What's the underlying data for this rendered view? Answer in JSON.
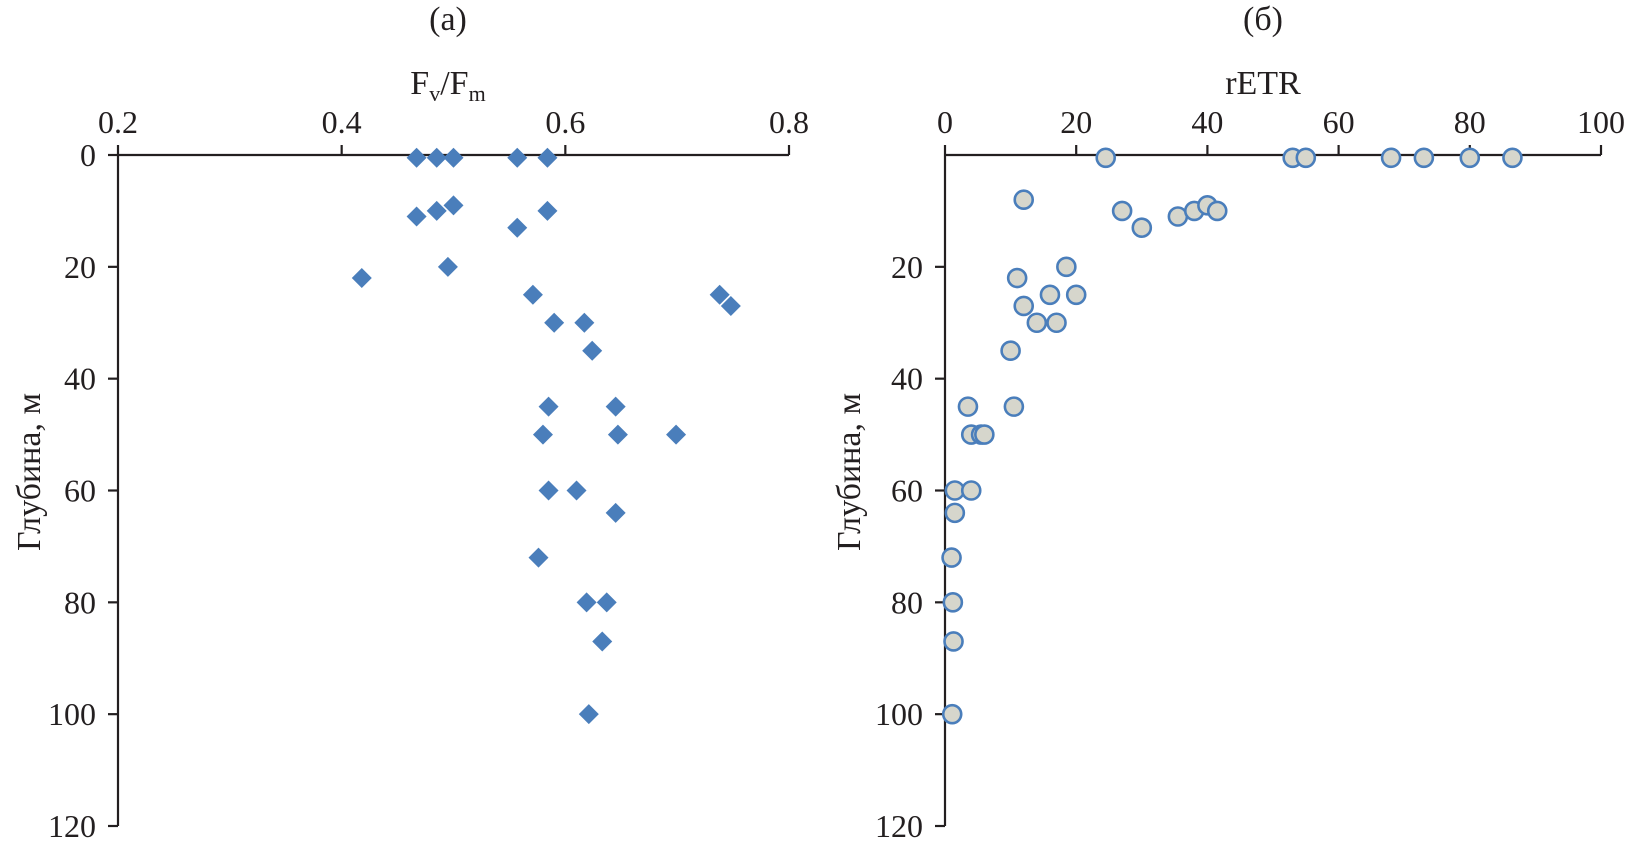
{
  "chart_data": [
    {
      "type": "scatter",
      "panel_label": "(а)",
      "xlabel": {
        "main": "F",
        "sub1": "v",
        "sep": "/F",
        "sub2": "m"
      },
      "ylabel": "Глубина, м",
      "xlim": [
        0.2,
        0.8
      ],
      "ylim": [
        120,
        0
      ],
      "x_axis_position": "top",
      "x_ticks": [
        0.2,
        0.4,
        0.6,
        0.8
      ],
      "x_tick_labels": [
        "0.2",
        "0.4",
        "0.6",
        "0.8"
      ],
      "y_ticks": [
        0,
        20,
        40,
        60,
        80,
        100,
        120
      ],
      "y_tick_labels": [
        "0",
        "20",
        "40",
        "60",
        "80",
        "100",
        "120"
      ],
      "grid": false,
      "marker": "diamond",
      "marker_color": "#4a7ebb",
      "series": [
        {
          "points": [
            {
              "x": 0.467,
              "y": 0.5
            },
            {
              "x": 0.485,
              "y": 0.5
            },
            {
              "x": 0.5,
              "y": 0.5
            },
            {
              "x": 0.557,
              "y": 0.5
            },
            {
              "x": 0.584,
              "y": 0.5
            },
            {
              "x": 0.467,
              "y": 11
            },
            {
              "x": 0.485,
              "y": 10
            },
            {
              "x": 0.5,
              "y": 9
            },
            {
              "x": 0.557,
              "y": 13
            },
            {
              "x": 0.584,
              "y": 10
            },
            {
              "x": 0.418,
              "y": 22
            },
            {
              "x": 0.495,
              "y": 20
            },
            {
              "x": 0.571,
              "y": 25
            },
            {
              "x": 0.738,
              "y": 25
            },
            {
              "x": 0.748,
              "y": 27
            },
            {
              "x": 0.59,
              "y": 30
            },
            {
              "x": 0.617,
              "y": 30
            },
            {
              "x": 0.624,
              "y": 35
            },
            {
              "x": 0.585,
              "y": 45
            },
            {
              "x": 0.645,
              "y": 45
            },
            {
              "x": 0.58,
              "y": 50
            },
            {
              "x": 0.647,
              "y": 50
            },
            {
              "x": 0.699,
              "y": 50
            },
            {
              "x": 0.585,
              "y": 60
            },
            {
              "x": 0.61,
              "y": 60
            },
            {
              "x": 0.645,
              "y": 64
            },
            {
              "x": 0.576,
              "y": 72
            },
            {
              "x": 0.619,
              "y": 80
            },
            {
              "x": 0.637,
              "y": 80
            },
            {
              "x": 0.633,
              "y": 87
            },
            {
              "x": 0.621,
              "y": 100
            }
          ]
        }
      ]
    },
    {
      "type": "scatter",
      "panel_label": "(б)",
      "xlabel": "rETR",
      "ylabel": "Глубина, м",
      "xlim": [
        0,
        100
      ],
      "ylim": [
        120,
        0
      ],
      "x_axis_position": "top",
      "x_ticks": [
        0,
        20,
        40,
        60,
        80,
        100
      ],
      "x_tick_labels": [
        "0",
        "20",
        "40",
        "60",
        "80",
        "100"
      ],
      "y_ticks": [
        20,
        40,
        60,
        80,
        100,
        120
      ],
      "y_tick_labels": [
        "20",
        "40",
        "60",
        "80",
        "100",
        "120"
      ],
      "grid": false,
      "marker": "circle",
      "marker_fill": "#d6d6cc",
      "marker_edge": "#4a7ebb",
      "series": [
        {
          "points": [
            {
              "x": 24.5,
              "y": 0.5
            },
            {
              "x": 53,
              "y": 0.5
            },
            {
              "x": 55,
              "y": 0.5
            },
            {
              "x": 68,
              "y": 0.5
            },
            {
              "x": 73,
              "y": 0.5
            },
            {
              "x": 80,
              "y": 0.5
            },
            {
              "x": 86.5,
              "y": 0.5
            },
            {
              "x": 12,
              "y": 8
            },
            {
              "x": 27,
              "y": 10
            },
            {
              "x": 30,
              "y": 13
            },
            {
              "x": 35.5,
              "y": 11
            },
            {
              "x": 38,
              "y": 10
            },
            {
              "x": 40,
              "y": 9
            },
            {
              "x": 41.5,
              "y": 10
            },
            {
              "x": 18.5,
              "y": 20
            },
            {
              "x": 11,
              "y": 22
            },
            {
              "x": 16,
              "y": 25
            },
            {
              "x": 20,
              "y": 25
            },
            {
              "x": 12,
              "y": 27
            },
            {
              "x": 14,
              "y": 30
            },
            {
              "x": 17,
              "y": 30
            },
            {
              "x": 10,
              "y": 35
            },
            {
              "x": 3.5,
              "y": 45
            },
            {
              "x": 10.5,
              "y": 45
            },
            {
              "x": 4,
              "y": 50
            },
            {
              "x": 5.5,
              "y": 50
            },
            {
              "x": 6,
              "y": 50
            },
            {
              "x": 1.5,
              "y": 60
            },
            {
              "x": 4,
              "y": 60
            },
            {
              "x": 1.5,
              "y": 64
            },
            {
              "x": 1,
              "y": 72
            },
            {
              "x": 1.2,
              "y": 80
            },
            {
              "x": 1.3,
              "y": 87
            },
            {
              "x": 1.1,
              "y": 100
            }
          ]
        }
      ]
    }
  ]
}
